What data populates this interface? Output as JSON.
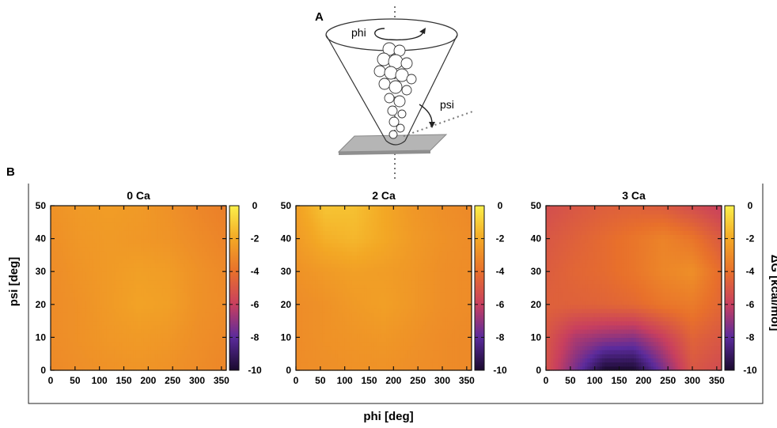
{
  "figure": {
    "panel_a_label": "A",
    "panel_b_label": "B",
    "schematic": {
      "phi_label": "phi",
      "psi_label": "psi"
    }
  },
  "chart_data": [
    {
      "type": "heatmap",
      "title": "0 Ca",
      "xlabel": "phi [deg]",
      "ylabel": "psi [deg]",
      "xlim": [
        0,
        360
      ],
      "ylim": [
        0,
        50
      ],
      "x_ticks": [
        0,
        50,
        100,
        150,
        200,
        250,
        300,
        350
      ],
      "y_ticks": [
        0,
        10,
        20,
        30,
        40,
        50
      ],
      "colorbar": {
        "label": "ΔG [kcal/mol]",
        "range": [
          -10,
          0
        ],
        "ticks": [
          0,
          -2,
          -4,
          -6,
          -8,
          -10
        ]
      },
      "x": [
        0,
        60,
        120,
        180,
        240,
        300,
        360
      ],
      "y": [
        0,
        10,
        20,
        30,
        40,
        50
      ],
      "z": [
        [
          -3.1,
          -2.9,
          -2.8,
          -2.7,
          -2.8,
          -3.0,
          -3.2
        ],
        [
          -3.0,
          -2.8,
          -2.6,
          -2.5,
          -2.6,
          -2.9,
          -3.1
        ],
        [
          -3.0,
          -2.8,
          -2.5,
          -2.2,
          -2.3,
          -2.8,
          -3.0
        ],
        [
          -3.0,
          -2.7,
          -2.5,
          -2.3,
          -2.4,
          -2.8,
          -3.1
        ],
        [
          -2.9,
          -2.6,
          -2.5,
          -2.6,
          -2.7,
          -3.0,
          -3.3
        ],
        [
          -2.8,
          -2.5,
          -2.4,
          -2.5,
          -2.8,
          -3.2,
          -3.5
        ]
      ]
    },
    {
      "type": "heatmap",
      "title": "2 Ca",
      "xlabel": "phi [deg]",
      "ylabel": "psi [deg]",
      "xlim": [
        0,
        360
      ],
      "ylim": [
        0,
        50
      ],
      "x_ticks": [
        0,
        50,
        100,
        150,
        200,
        250,
        300,
        350
      ],
      "y_ticks": [
        0,
        10,
        20,
        30,
        40,
        50
      ],
      "colorbar": {
        "label": "ΔG [kcal/mol]",
        "range": [
          -10,
          0
        ],
        "ticks": [
          0,
          -2,
          -4,
          -6,
          -8,
          -10
        ]
      },
      "x": [
        0,
        60,
        120,
        180,
        240,
        300,
        360
      ],
      "y": [
        0,
        10,
        20,
        30,
        40,
        50
      ],
      "z": [
        [
          -3.0,
          -2.9,
          -2.8,
          -2.8,
          -2.9,
          -3.0,
          -3.1
        ],
        [
          -3.0,
          -2.8,
          -2.7,
          -2.6,
          -2.8,
          -3.0,
          -3.1
        ],
        [
          -3.0,
          -2.8,
          -2.5,
          -2.3,
          -2.6,
          -2.9,
          -3.0
        ],
        [
          -2.8,
          -2.5,
          -2.3,
          -2.4,
          -2.6,
          -2.9,
          -3.0
        ],
        [
          -2.5,
          -1.8,
          -1.6,
          -2.0,
          -2.5,
          -2.8,
          -3.0
        ],
        [
          -2.3,
          -1.2,
          -1.3,
          -2.0,
          -2.6,
          -2.9,
          -3.1
        ]
      ]
    },
    {
      "type": "heatmap",
      "title": "3 Ca",
      "xlabel": "phi [deg]",
      "ylabel": "psi [deg]",
      "xlim": [
        0,
        360
      ],
      "ylim": [
        0,
        50
      ],
      "x_ticks": [
        0,
        50,
        100,
        150,
        200,
        250,
        300,
        350
      ],
      "y_ticks": [
        0,
        10,
        20,
        30,
        40,
        50
      ],
      "colorbar": {
        "label": "ΔG [kcal/mol]",
        "range": [
          -10,
          0
        ],
        "ticks": [
          0,
          -2,
          -4,
          -6,
          -8,
          -10
        ]
      },
      "x": [
        0,
        60,
        120,
        180,
        240,
        300,
        360
      ],
      "y": [
        0,
        10,
        20,
        30,
        40,
        50
      ],
      "z": [
        [
          -5.2,
          -7.5,
          -10.0,
          -10.0,
          -7.5,
          -5.0,
          -5.5
        ],
        [
          -5.0,
          -6.5,
          -7.0,
          -7.2,
          -6.0,
          -4.5,
          -5.0
        ],
        [
          -4.6,
          -4.6,
          -4.5,
          -4.3,
          -3.8,
          -3.6,
          -4.4
        ],
        [
          -4.8,
          -4.4,
          -4.2,
          -3.8,
          -3.2,
          -2.9,
          -4.2
        ],
        [
          -5.0,
          -4.6,
          -4.2,
          -3.8,
          -3.3,
          -3.8,
          -4.9
        ],
        [
          -5.4,
          -5.0,
          -4.7,
          -4.6,
          -4.8,
          -5.4,
          -6.0
        ]
      ]
    }
  ]
}
